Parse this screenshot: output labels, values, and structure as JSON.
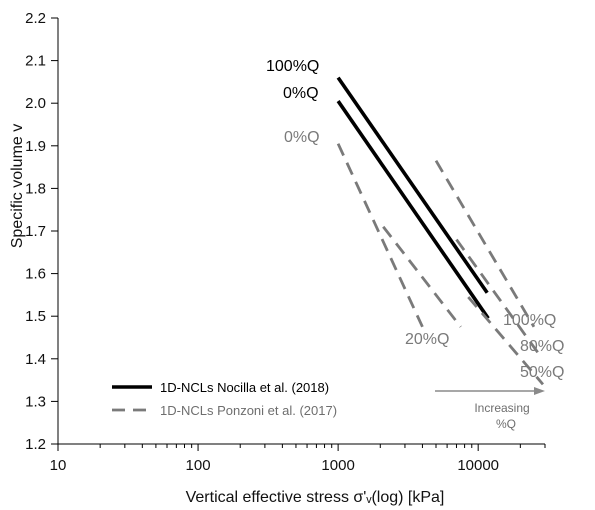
{
  "chart_data": {
    "type": "line",
    "xlabel": "Vertical effective stress σ'ᵥ(log) [kPa]",
    "ylabel": "Specific volume v",
    "xscale": "log",
    "xlim": [
      10,
      30000
    ],
    "ylim": [
      1.2,
      2.2
    ],
    "x_ticks": [
      10,
      100,
      1000,
      10000
    ],
    "x_tick_labels": [
      "10",
      "100",
      "1000",
      "10000"
    ],
    "y_ticks": [
      1.2,
      1.3,
      1.4,
      1.5,
      1.6,
      1.7,
      1.8,
      1.9,
      2.0,
      2.1,
      2.2
    ],
    "y_tick_labels": [
      "1.2",
      "1.3",
      "1.4",
      "1.5",
      "1.6",
      "1.7",
      "1.8",
      "1.9",
      "2.0",
      "2.1",
      "2.2"
    ],
    "legend": {
      "placement": "bottom-left",
      "entries": [
        {
          "label": "1D-NCLs Nocilla et al. (2018)",
          "style": "solid",
          "color": "#000000"
        },
        {
          "label": "1D-NCLs Ponzoni et al. (2017)",
          "style": "dashed",
          "color": "#7a7a7a"
        }
      ]
    },
    "series": [
      {
        "group": "Nocilla",
        "style": "solid",
        "label": "100%Q",
        "points": [
          [
            1000,
            2.06
          ],
          [
            11600,
            1.555
          ]
        ]
      },
      {
        "group": "Nocilla",
        "style": "solid",
        "label": "0%Q",
        "points": [
          [
            1000,
            2.005
          ],
          [
            11800,
            1.495
          ]
        ]
      },
      {
        "group": "Ponzoni",
        "style": "dashed",
        "label": "0%Q",
        "points": [
          [
            1000,
            1.905
          ],
          [
            4000,
            1.475
          ]
        ]
      },
      {
        "group": "Ponzoni",
        "style": "dashed",
        "label": "20%Q",
        "points": [
          [
            2100,
            1.71
          ],
          [
            7500,
            1.475
          ]
        ]
      },
      {
        "group": "Ponzoni",
        "style": "dashed",
        "label": "100%Q",
        "points": [
          [
            5000,
            1.865
          ],
          [
            25000,
            1.475
          ]
        ]
      },
      {
        "group": "Ponzoni",
        "style": "dashed",
        "label": "80%Q",
        "points": [
          [
            7000,
            1.68
          ],
          [
            28000,
            1.405
          ]
        ]
      },
      {
        "group": "Ponzoni",
        "style": "dashed",
        "label": "50%Q",
        "points": [
          [
            8500,
            1.545
          ],
          [
            29000,
            1.34
          ]
        ]
      }
    ],
    "annotations": {
      "increasing_label_1": "Increasing",
      "increasing_label_2": "%Q"
    },
    "grid": false
  },
  "colors": {
    "solid": "#000000",
    "dashed": "#7a7a7a",
    "axis": "#000000"
  }
}
